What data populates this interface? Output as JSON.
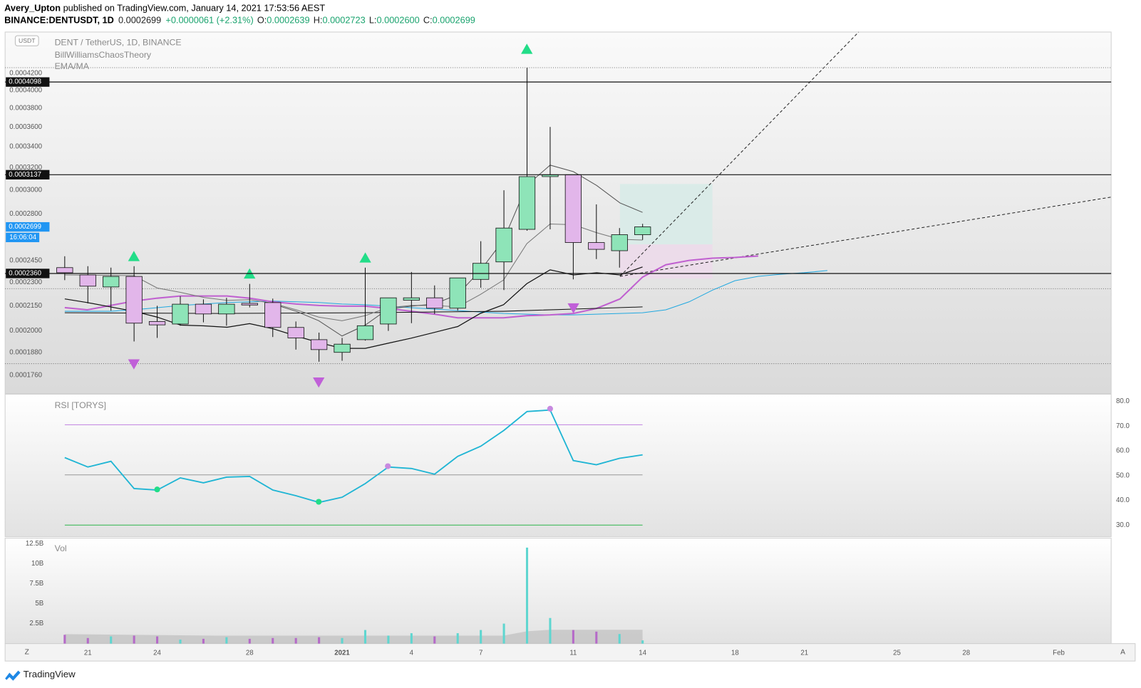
{
  "header": {
    "author": "Avery_Upton",
    "published": "published on TradingView.com, January 14, 2021 17:53:56 AEST",
    "symbol": "BINANCE:DENTUSDT, 1D",
    "last": "0.0002699",
    "change": "+0.0000061 (+2.31%)",
    "ohlc": [
      {
        "label": "O:",
        "value": "0.0002639"
      },
      {
        "label": "H:",
        "value": "0.0002723"
      },
      {
        "label": "L:",
        "value": "0.0002600"
      },
      {
        "label": "C:",
        "value": "0.0002699"
      }
    ]
  },
  "chart_data": [
    {
      "type": "candlestick",
      "title": "DENT / TetherUS, 1D, BINANCE",
      "indicators": [
        "BillWilliamsChaosTheory",
        "EMA/MA"
      ],
      "currency": "USDT",
      "up_color": "#8ee4b8",
      "down_color": "#e2b6ea",
      "log_scale": true,
      "open": [
        0.00024,
        0.000235,
        0.000227,
        0.000234,
        0.0002055,
        0.000204,
        0.000216,
        0.00021,
        0.0002165,
        0.000217,
        0.000202,
        0.000195,
        0.000188,
        0.000195,
        0.000204,
        0.0002185,
        0.00022,
        0.0002135,
        0.000232,
        0.000244,
        0.000268,
        0.000312,
        0.0003137,
        0.000258,
        0.000252,
        0.0002639
      ],
      "high": [
        0.000248,
        0.000241,
        0.00024,
        0.000241,
        0.000215,
        0.000221,
        0.000219,
        0.00022,
        0.000229,
        0.0002195,
        0.0002055,
        0.000199,
        0.000196,
        0.00024,
        0.00022,
        0.000237,
        0.000228,
        0.000233,
        0.000259,
        0.0003,
        0.000427,
        0.00036,
        0.0003137,
        0.000288,
        0.000269,
        0.0002723
      ],
      "low": [
        0.0002315,
        0.0002165,
        0.000212,
        0.000194,
        0.000196,
        0.000203,
        0.000205,
        0.000203,
        0.000214,
        0.0001965,
        0.0001895,
        0.000183,
        0.0001835,
        0.0001945,
        0.0002,
        0.0002045,
        0.00021,
        0.000212,
        0.0002265,
        0.000225,
        0.000267,
        0.000268,
        0.000232,
        0.000246,
        0.00024,
        0.00026
      ],
      "close": [
        0.0002365,
        0.0002275,
        0.000234,
        0.0002045,
        0.0002035,
        0.000216,
        0.00021,
        0.000216,
        0.0002155,
        0.000202,
        0.000196,
        0.0001895,
        0.0001925,
        0.000203,
        0.00022,
        0.00022,
        0.0002135,
        0.000233,
        0.000243,
        0.000269,
        0.000312,
        0.0003137,
        0.000258,
        0.000253,
        0.0002639,
        0.0002699
      ],
      "ylim": [
        0.000167,
        0.0004733
      ],
      "yticks": [
        {
          "value": 0.00042,
          "label": "0.0004200"
        },
        {
          "value": 0.0004,
          "label": "0.0004000"
        },
        {
          "value": 0.00038,
          "label": "0.0003800"
        },
        {
          "value": 0.00036,
          "label": "0.0003600"
        },
        {
          "value": 0.00034,
          "label": "0.0003400"
        },
        {
          "value": 0.00032,
          "label": "0.0003200"
        },
        {
          "value": 0.0003,
          "label": "0.0003000"
        },
        {
          "value": 0.00028,
          "label": "0.0002800"
        },
        {
          "value": 0.000245,
          "label": "0.0002450"
        },
        {
          "value": 0.00023,
          "label": "0.0002300"
        },
        {
          "value": 0.000215,
          "label": "0.0002150"
        },
        {
          "value": 0.0002,
          "label": "0.0002000"
        },
        {
          "value": 0.000188,
          "label": "0.0001880"
        },
        {
          "value": 0.000176,
          "label": "0.0001760"
        }
      ],
      "levels": [
        0.0004098,
        0.0003137,
        {
          "value": 0.000236,
          "label": "0.0002360"
        }
      ],
      "last_price": 0.0002699,
      "countdown": "16:06:04",
      "xlim": [
        -2.58,
        45.27
      ],
      "xticks": [
        {
          "value": 1,
          "label": "21"
        },
        {
          "value": 4,
          "label": "24"
        },
        {
          "value": 8,
          "label": "28"
        },
        {
          "value": 12,
          "label": "2021"
        },
        {
          "value": 15,
          "label": "4"
        },
        {
          "value": 18,
          "label": "7"
        },
        {
          "value": 22,
          "label": "11"
        },
        {
          "value": 25,
          "label": "14"
        },
        {
          "value": 29,
          "label": "18"
        },
        {
          "value": 32,
          "label": "21"
        },
        {
          "value": 36,
          "label": "25"
        },
        {
          "value": 39,
          "label": "28"
        },
        {
          "value": 43,
          "label": "Feb"
        }
      ]
    },
    {
      "type": "line",
      "title": "RSI [TORYS]",
      "color": "#1fb5d4",
      "values": [
        57.3,
        53.5,
        55.8,
        44.8,
        44.2,
        49.1,
        47.1,
        49.4,
        49.7,
        44.2,
        41.9,
        39.2,
        41.3,
        46.8,
        53.5,
        52.9,
        50.6,
        57.8,
        61.9,
        68.3,
        75.9,
        76.5,
        56.1,
        54.4,
        57.0,
        58.4
      ],
      "ylim": [
        25.35,
        82.9
      ],
      "yticks": [
        {
          "value": 80,
          "label": "80.0"
        },
        {
          "value": 70,
          "label": "70.0"
        },
        {
          "value": 60,
          "label": "60.0"
        },
        {
          "value": 50,
          "label": "50.0"
        },
        {
          "value": 40,
          "label": "40.0"
        },
        {
          "value": 30,
          "label": "30.0"
        }
      ]
    },
    {
      "type": "bar",
      "title": "Vol",
      "up_color": "#5fd6d0",
      "down_color": "#b56ac8",
      "values": [
        1.1,
        0.7,
        0.9,
        1.0,
        0.9,
        0.5,
        0.6,
        0.8,
        0.6,
        0.7,
        0.7,
        0.8,
        0.7,
        1.7,
        1.0,
        1.3,
        0.9,
        1.3,
        1.7,
        2.5,
        12.0,
        3.2,
        1.7,
        1.5,
        1.2,
        0.4
      ],
      "ylim": [
        0,
        13.18
      ],
      "yticks": [
        {
          "value": 12.5,
          "label": "12.5B"
        },
        {
          "value": 10,
          "label": "10B"
        },
        {
          "value": 7.5,
          "label": "7.5B"
        },
        {
          "value": 5,
          "label": "5B"
        },
        {
          "value": 2.5,
          "label": "2.5B"
        }
      ]
    }
  ],
  "footer": {
    "brand": "TradingView",
    "left_button": "Z",
    "right_button": "A"
  }
}
